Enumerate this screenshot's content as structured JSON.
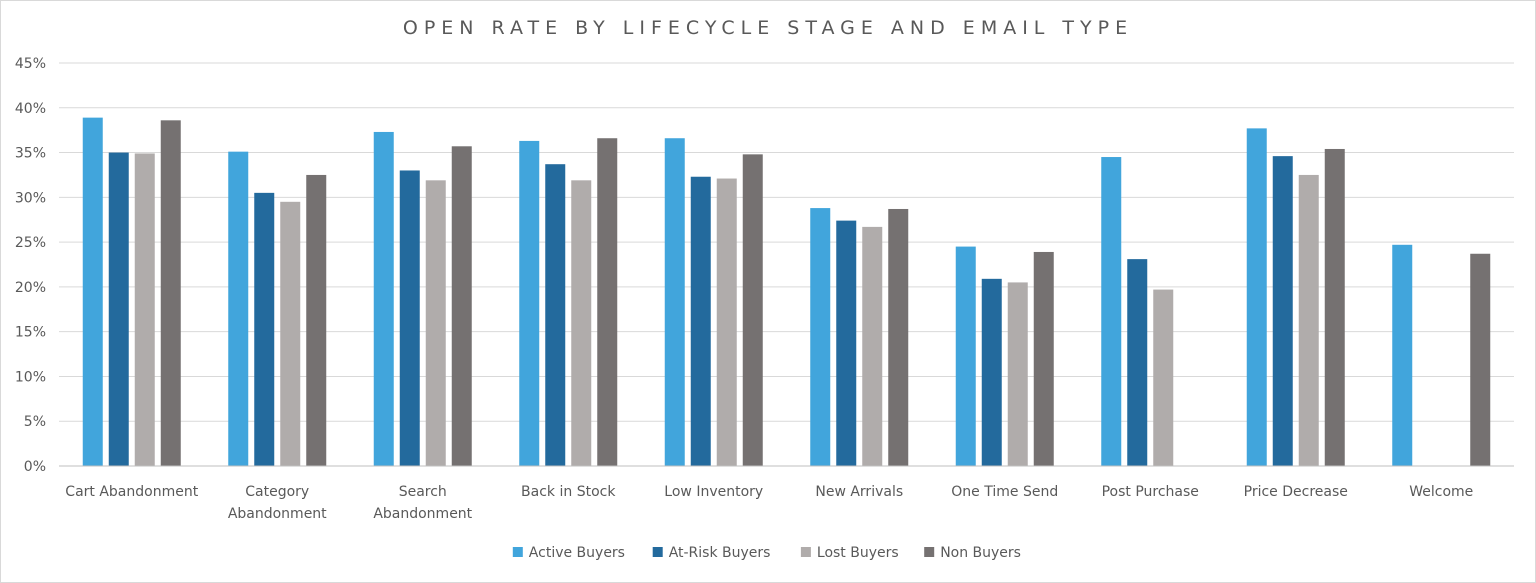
{
  "chart_data": {
    "type": "bar",
    "title": "OPEN RATE BY LIFECYCLE STAGE AND EMAIL TYPE",
    "xlabel": "",
    "ylabel": "",
    "ylim": [
      0,
      45
    ],
    "yticks": [
      0,
      5,
      10,
      15,
      20,
      25,
      30,
      35,
      40,
      45
    ],
    "ytick_labels": [
      "0%",
      "5%",
      "10%",
      "15%",
      "20%",
      "25%",
      "30%",
      "35%",
      "40%",
      "45%"
    ],
    "grid": true,
    "legend_position": "bottom",
    "categories": [
      [
        "Cart Abandonment"
      ],
      [
        "Category",
        "Abandonment"
      ],
      [
        "Search",
        "Abandonment"
      ],
      [
        "Back in Stock"
      ],
      [
        "Low Inventory"
      ],
      [
        "New Arrivals"
      ],
      [
        "One Time Send"
      ],
      [
        "Post Purchase"
      ],
      [
        "Price Decrease"
      ],
      [
        "Welcome"
      ]
    ],
    "series": [
      {
        "name": "Active Buyers",
        "color": "#41a5dc",
        "values": [
          38.9,
          35.1,
          37.3,
          36.3,
          36.6,
          28.8,
          24.5,
          34.5,
          37.7,
          24.7
        ]
      },
      {
        "name": "At-Risk Buyers",
        "color": "#236a9d",
        "values": [
          35.0,
          30.5,
          33.0,
          33.7,
          32.3,
          27.4,
          20.9,
          23.1,
          34.6,
          null
        ]
      },
      {
        "name": "Lost Buyers",
        "color": "#b0acab",
        "values": [
          34.9,
          29.5,
          31.9,
          31.9,
          32.1,
          26.7,
          20.5,
          19.7,
          32.5,
          null
        ]
      },
      {
        "name": "Non Buyers",
        "color": "#757171",
        "values": [
          38.6,
          32.5,
          35.7,
          36.6,
          34.8,
          28.7,
          23.9,
          null,
          35.4,
          23.7
        ]
      }
    ]
  }
}
